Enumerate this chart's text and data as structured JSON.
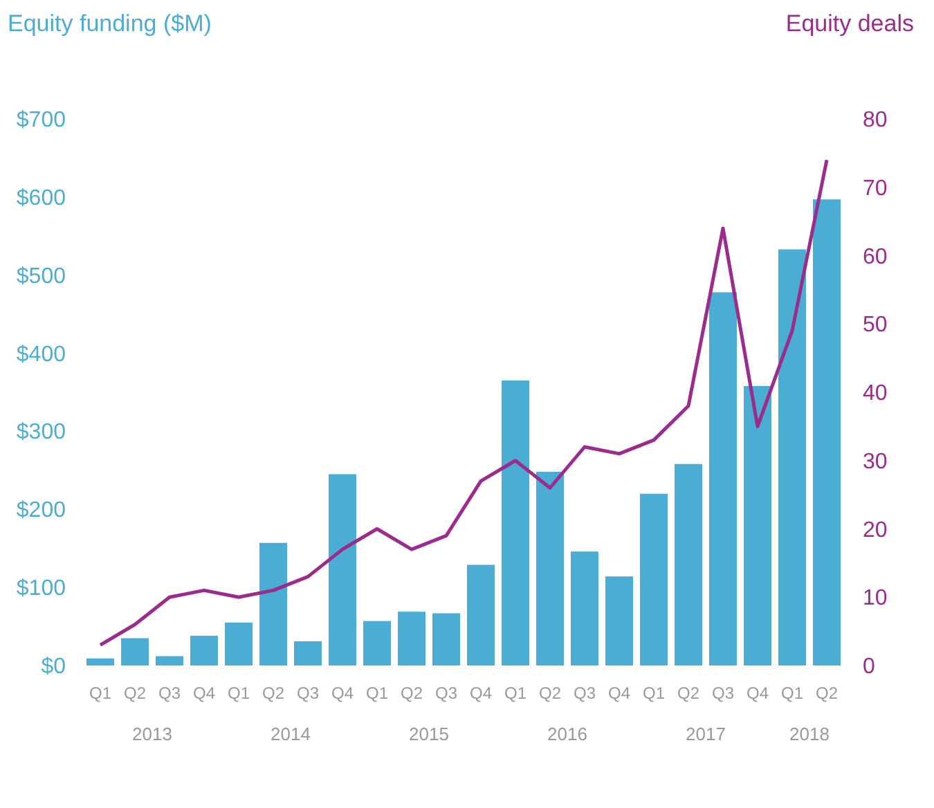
{
  "chart_data": {
    "type": "bar",
    "ylabel": "Equity funding ($M)",
    "y2label": "Equity deals",
    "categories": [
      "Q1",
      "Q2",
      "Q3",
      "Q4",
      "Q1",
      "Q2",
      "Q3",
      "Q4",
      "Q1",
      "Q2",
      "Q3",
      "Q4",
      "Q1",
      "Q2",
      "Q3",
      "Q4",
      "Q1",
      "Q2",
      "Q3",
      "Q4",
      "Q1",
      "Q2"
    ],
    "series": [
      {
        "color": "#4badd3",
        "values": [
          9,
          35,
          12,
          38,
          55,
          157,
          31,
          245,
          57,
          69,
          67,
          129,
          365,
          248,
          146,
          114,
          220,
          258,
          478,
          358,
          533,
          597
        ]
      },
      {
        "type": "line",
        "axis": "y2",
        "color": "#9b2c8b",
        "values": [
          3,
          6,
          10,
          11,
          10,
          11,
          13,
          17,
          20,
          17,
          19,
          27,
          30,
          26,
          32,
          31,
          33,
          38,
          64,
          35,
          49,
          74
        ]
      }
    ],
    "ylim": [
      0,
      700
    ],
    "yticks": [
      {
        "value": 0,
        "label": "$0"
      },
      {
        "value": 100,
        "label": "$100"
      },
      {
        "value": 200,
        "label": "$200"
      },
      {
        "value": 300,
        "label": "$300"
      },
      {
        "value": 400,
        "label": "$400"
      },
      {
        "value": 500,
        "label": "$500"
      },
      {
        "value": 600,
        "label": "$600"
      },
      {
        "value": 700,
        "label": "$700"
      }
    ],
    "y2lim": [
      0,
      80
    ],
    "y2ticks": [
      0,
      10,
      20,
      30,
      40,
      50,
      60,
      70,
      80
    ],
    "annotations": [
      "2013",
      "2014",
      "2015",
      "2016",
      "2017",
      "2018"
    ],
    "grid": false,
    "marker": "none",
    "line_style": "solid"
  }
}
